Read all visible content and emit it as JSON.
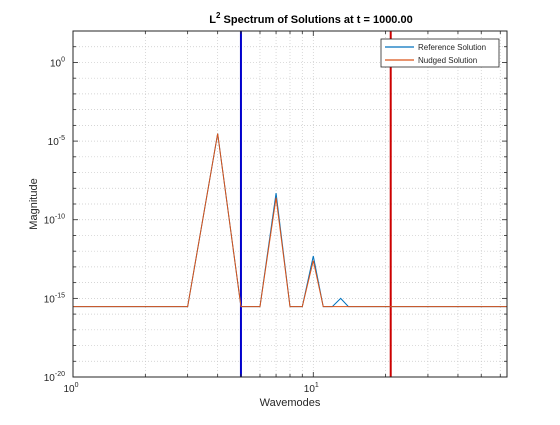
{
  "chart_data": {
    "type": "line",
    "title": {
      "prefix": "L",
      "superscript": "2",
      "rest": " Spectrum of Solutions at t = 1000.00"
    },
    "xlabel": "Wavemodes",
    "ylabel": "Magnitude",
    "xscale": "log",
    "yscale": "log",
    "xlim": [
      1,
      64
    ],
    "ylim": [
      1e-20,
      100.0
    ],
    "grid": "major and minor, dotted",
    "x_ticks": [
      {
        "value": 1,
        "base": "10",
        "exp": "0"
      },
      {
        "value": 10,
        "base": "10",
        "exp": "1"
      }
    ],
    "y_ticks": [
      {
        "value": 1e-20,
        "base": "10",
        "exp": "-20"
      },
      {
        "value": 1e-15,
        "base": "10",
        "exp": "-15"
      },
      {
        "value": 1e-10,
        "base": "10",
        "exp": "-10"
      },
      {
        "value": 1e-05,
        "base": "10",
        "exp": "-5"
      },
      {
        "value": 1,
        "base": "10",
        "exp": "0"
      }
    ],
    "legend": {
      "position": "top-right"
    },
    "series": [
      {
        "name": "Reference Solution",
        "color": "#0072BD",
        "points": [
          [
            1,
            3e-16
          ],
          [
            2,
            3e-16
          ],
          [
            3,
            3e-16
          ],
          [
            4,
            3e-05
          ],
          [
            5,
            3e-16
          ],
          [
            6,
            3e-16
          ],
          [
            7,
            5e-09
          ],
          [
            8,
            3e-16
          ],
          [
            9,
            3e-16
          ],
          [
            10,
            5e-13
          ],
          [
            11,
            3e-16
          ],
          [
            12,
            3e-16
          ],
          [
            13,
            1e-15
          ],
          [
            14,
            3e-16
          ],
          [
            16,
            3e-16
          ],
          [
            20,
            3e-16
          ],
          [
            32,
            3e-16
          ],
          [
            64,
            3e-16
          ]
        ]
      },
      {
        "name": "Nudged Solution",
        "color": "#D95319",
        "points": [
          [
            1,
            3e-16
          ],
          [
            2,
            3e-16
          ],
          [
            3,
            3e-16
          ],
          [
            4,
            3e-05
          ],
          [
            5,
            3e-16
          ],
          [
            6,
            3e-16
          ],
          [
            7,
            2.5e-09
          ],
          [
            8,
            3e-16
          ],
          [
            9,
            3e-16
          ],
          [
            10,
            2.5e-13
          ],
          [
            11,
            3e-16
          ],
          [
            12,
            3e-16
          ],
          [
            13,
            3e-16
          ],
          [
            14,
            3e-16
          ],
          [
            16,
            3e-16
          ],
          [
            20,
            3e-16
          ],
          [
            32,
            3e-16
          ],
          [
            64,
            3e-16
          ]
        ]
      }
    ],
    "vertical_lines": [
      {
        "x": 5,
        "color": "#0000CC"
      },
      {
        "x": 21,
        "color": "#CC0000"
      }
    ]
  }
}
